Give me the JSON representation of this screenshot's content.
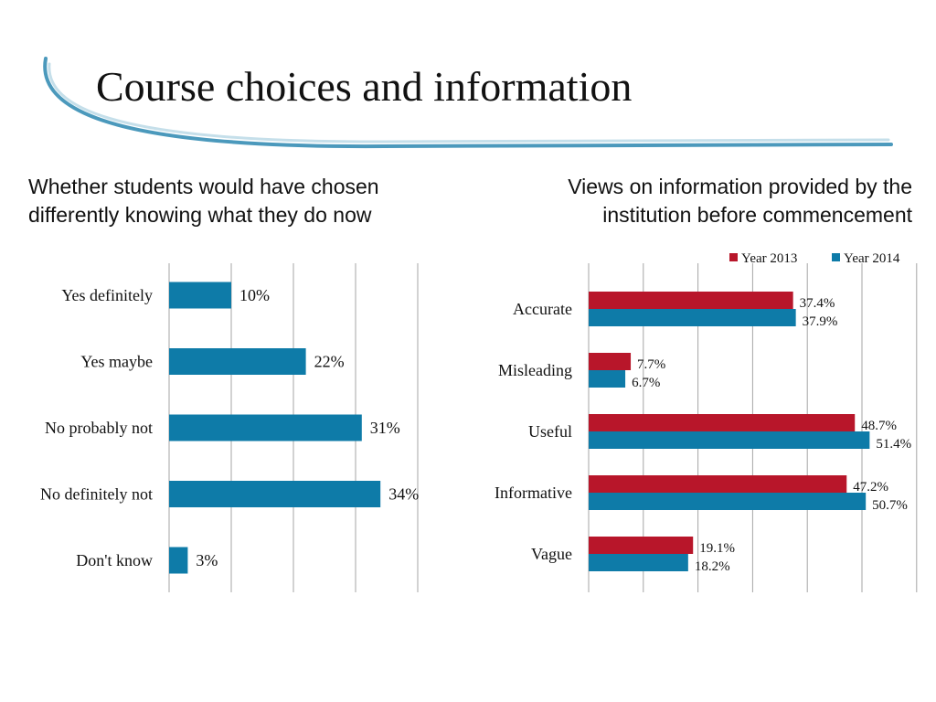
{
  "slide": {
    "title": "Course choices and information",
    "left_subtitle": [
      "Whether students would have chosen",
      "differently knowing what they do now"
    ],
    "right_subtitle": [
      "Views on information provided by the",
      "institution before commencement"
    ]
  },
  "colors": {
    "accent_blue": "#0e7ba8",
    "accent_red": "#b8162a",
    "grid": "#a6a6a6",
    "swoosh": "#2b87b0"
  },
  "chart_data": [
    {
      "type": "bar",
      "orientation": "horizontal",
      "title": "Whether students would have chosen differently knowing what they do now",
      "categories": [
        "Yes definitely",
        "Yes maybe",
        "No probably not",
        "No definitely not",
        "Don't know"
      ],
      "values": [
        10,
        22,
        31,
        34,
        3
      ],
      "data_labels": [
        "10%",
        "22%",
        "31%",
        "34%",
        "3%"
      ],
      "xlim": [
        0,
        40
      ],
      "grid": true,
      "color": "#0e7ba8"
    },
    {
      "type": "bar",
      "orientation": "horizontal",
      "title": "Views on information provided by the institution before commencement",
      "categories": [
        "Accurate",
        "Misleading",
        "Useful",
        "Informative",
        "Vague"
      ],
      "series": [
        {
          "name": "Year 2013",
          "color": "#b8162a",
          "values": [
            37.4,
            7.7,
            48.7,
            47.2,
            19.1
          ],
          "data_labels": [
            "37.4%",
            "7.7%",
            "48.7%",
            "47.2%",
            "19.1%"
          ]
        },
        {
          "name": "Year 2014",
          "color": "#0e7ba8",
          "values": [
            37.9,
            6.7,
            51.4,
            50.7,
            18.2
          ],
          "data_labels": [
            "37.9%",
            "6.7%",
            "51.4%",
            "50.7%",
            "18.2%"
          ]
        }
      ],
      "xlim": [
        0,
        60
      ],
      "grid": true,
      "legend": "top-right"
    }
  ]
}
